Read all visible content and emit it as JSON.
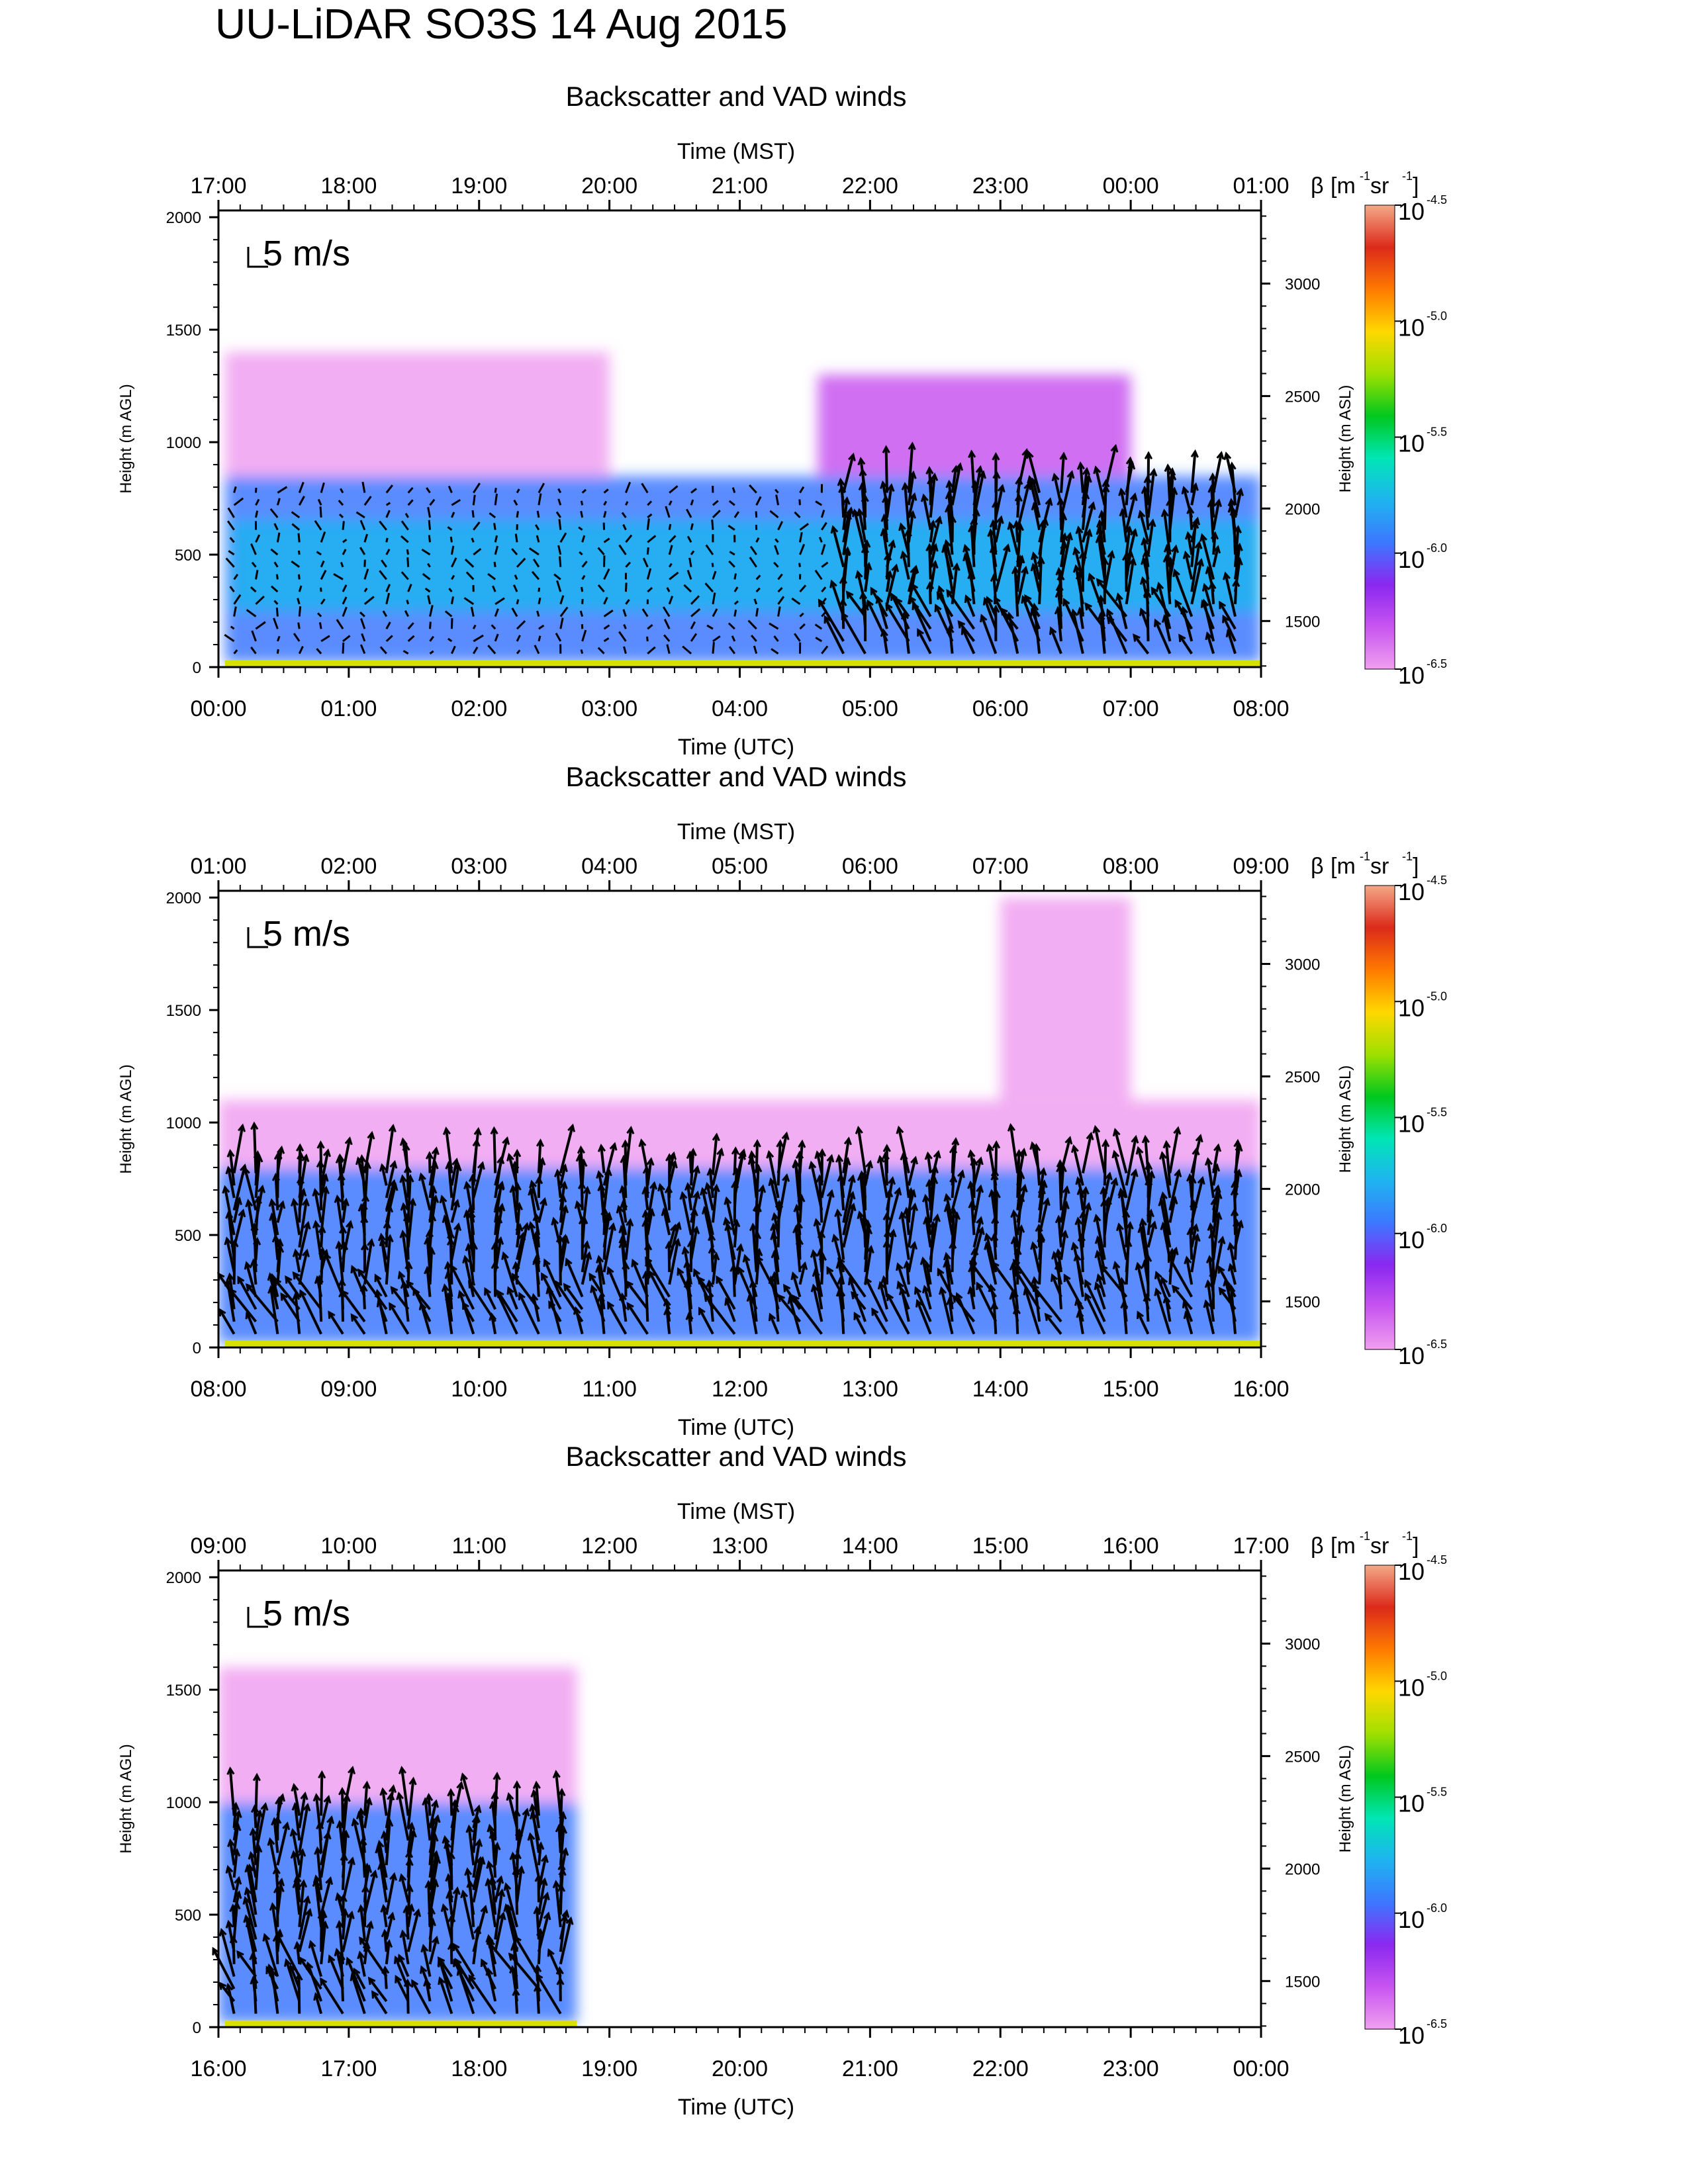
{
  "figure_title": "UU-LiDAR SO3S 14 Aug 2015",
  "colorbar": {
    "label_beta": "β",
    "label_units": "[m",
    "label_exp1": "-1",
    "label_sr": " sr",
    "label_exp2": "-1",
    "label_close": "]",
    "base": "10",
    "exponents": [
      "-4.5",
      "-5.0",
      "-5.5",
      "-6.0",
      "-6.5"
    ],
    "colors": [
      "#f4a988",
      "#dc2a1a",
      "#ff7a00",
      "#ffd800",
      "#9ee000",
      "#00c81e",
      "#00e6b4",
      "#1eb4f0",
      "#3c78ff",
      "#8a28f0",
      "#c855f0",
      "#f0a0f0"
    ]
  },
  "chart_data": [
    {
      "type": "heatmap",
      "title": "Backscatter and VAD winds",
      "top_axis_label": "Time (MST)",
      "bottom_axis_label": "Time (UTC)",
      "ylabel_left": "Height (m AGL)",
      "ylabel_right": "Height (m ASL)",
      "reference_vector": "5 m/s",
      "x_top_ticks": [
        "17:00",
        "18:00",
        "19:00",
        "20:00",
        "21:00",
        "22:00",
        "23:00",
        "00:00",
        "01:00"
      ],
      "x_bottom_ticks": [
        "00:00",
        "01:00",
        "02:00",
        "03:00",
        "04:00",
        "05:00",
        "06:00",
        "07:00",
        "08:00"
      ],
      "x_range_utc_hours": [
        0,
        8
      ],
      "y_left_ticks": [
        0,
        500,
        1000,
        1500,
        2000
      ],
      "y_right_ticks": [
        1500,
        2000,
        2500,
        3000
      ],
      "ylim_agl": [
        0,
        2030
      ],
      "backscatter_layers": [
        {
          "t0": 0.05,
          "t1": 8.0,
          "h0": 20,
          "h1": 850,
          "level": "-6.0"
        },
        {
          "t0": 0.1,
          "t1": 8.0,
          "h0": 250,
          "h1": 650,
          "level": "-5.7"
        },
        {
          "t0": 0.05,
          "t1": 3.0,
          "h0": 850,
          "h1": 1400,
          "level": "-6.5"
        },
        {
          "t0": 4.6,
          "t1": 7.0,
          "h0": 850,
          "h1": 1300,
          "level": "-6.4"
        }
      ],
      "wind_profiles": "VAD wind vectors every ~10 min from 00:10 to 08:00 UTC, heights ~60–800 m AGL; stronger southerly winds (~5–8 m/s) after 04:45 UTC"
    },
    {
      "type": "heatmap",
      "title": "Backscatter and VAD winds",
      "top_axis_label": "Time (MST)",
      "bottom_axis_label": "Time (UTC)",
      "ylabel_left": "Height (m AGL)",
      "ylabel_right": "Height (m ASL)",
      "reference_vector": "5 m/s",
      "x_top_ticks": [
        "01:00",
        "02:00",
        "03:00",
        "04:00",
        "05:00",
        "06:00",
        "07:00",
        "08:00",
        "09:00"
      ],
      "x_bottom_ticks": [
        "08:00",
        "09:00",
        "10:00",
        "11:00",
        "12:00",
        "13:00",
        "14:00",
        "15:00",
        "16:00"
      ],
      "x_range_utc_hours": [
        8,
        16
      ],
      "y_left_ticks": [
        0,
        500,
        1000,
        1500,
        2000
      ],
      "y_right_ticks": [
        1500,
        2000,
        2500,
        3000
      ],
      "ylim_agl": [
        0,
        2030
      ],
      "backscatter_layers": [
        {
          "t0": 8.0,
          "t1": 16.0,
          "h0": 20,
          "h1": 800,
          "level": "-6.0"
        },
        {
          "t0": 8.0,
          "t1": 16.0,
          "h0": 800,
          "h1": 1100,
          "level": "-6.5"
        },
        {
          "t0": 14.0,
          "t1": 15.0,
          "h0": 1100,
          "h1": 2000,
          "level": "-6.5"
        }
      ],
      "wind_profiles": "VAD wind vectors every ~10 min from 08:00 to 16:00 UTC, heights ~60–800 m AGL; persistent southerly winds ~5–7 m/s"
    },
    {
      "type": "heatmap",
      "title": "Backscatter and VAD winds",
      "top_axis_label": "Time (MST)",
      "bottom_axis_label": "Time (UTC)",
      "ylabel_left": "Height (m AGL)",
      "ylabel_right": "Height (m ASL)",
      "reference_vector": "5 m/s",
      "x_top_ticks": [
        "09:00",
        "10:00",
        "11:00",
        "12:00",
        "13:00",
        "14:00",
        "15:00",
        "16:00",
        "17:00"
      ],
      "x_bottom_ticks": [
        "16:00",
        "17:00",
        "18:00",
        "19:00",
        "20:00",
        "21:00",
        "22:00",
        "23:00",
        "00:00"
      ],
      "x_range_utc_hours": [
        16,
        24
      ],
      "y_left_ticks": [
        0,
        500,
        1000,
        1500,
        2000
      ],
      "y_right_ticks": [
        1500,
        2000,
        2500,
        3000
      ],
      "ylim_agl": [
        0,
        2030
      ],
      "data_end_utc_hours": 18.75,
      "backscatter_layers": [
        {
          "t0": 16.0,
          "t1": 18.75,
          "h0": 20,
          "h1": 1000,
          "level": "-6.0"
        },
        {
          "t0": 16.0,
          "t1": 18.75,
          "h0": 1000,
          "h1": 1600,
          "level": "-6.5"
        }
      ],
      "wind_profiles": "VAD wind vectors from 16:00 to 18:45 UTC, heights ~60–1000 m AGL; southerly winds ~4–6 m/s"
    }
  ]
}
